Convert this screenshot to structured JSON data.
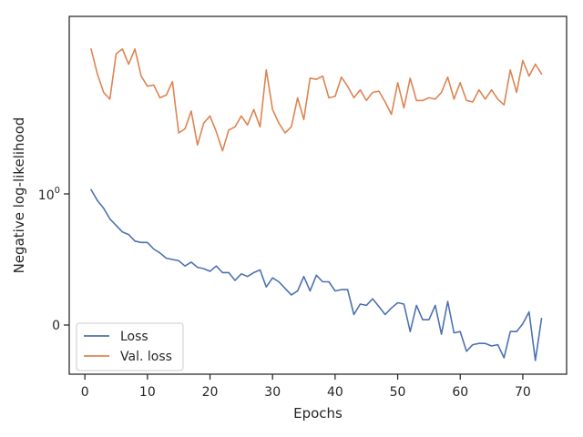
{
  "chart_data": {
    "type": "line",
    "title": "",
    "xlabel": "Epochs",
    "ylabel": "Negative log-likelihood",
    "xlim": [
      -2.5,
      77
    ],
    "x_ticks": [
      0,
      10,
      20,
      30,
      40,
      50,
      60,
      70
    ],
    "x_tick_labels": [
      "0",
      "10",
      "20",
      "30",
      "40",
      "50",
      "60",
      "70"
    ],
    "y_scale": "symlog",
    "y_tick_labels": {
      "zero": "0",
      "one_base": "10",
      "one_exp": "0"
    },
    "grid": false,
    "legend_position": "lower-left",
    "x": [
      1,
      2,
      3,
      4,
      5,
      6,
      7,
      8,
      9,
      10,
      11,
      12,
      13,
      14,
      15,
      16,
      17,
      18,
      19,
      20,
      21,
      22,
      23,
      24,
      25,
      26,
      27,
      28,
      29,
      30,
      31,
      32,
      33,
      34,
      35,
      36,
      37,
      38,
      39,
      40,
      41,
      42,
      43,
      44,
      45,
      46,
      47,
      48,
      49,
      50,
      51,
      52,
      53,
      54,
      55,
      56,
      57,
      58,
      59,
      60,
      61,
      62,
      63,
      64,
      65,
      66,
      67,
      68,
      69,
      70,
      71,
      72,
      73
    ],
    "series": [
      {
        "name": "Loss",
        "color": "#4c72b0",
        "values": [
          1.05,
          0.95,
          0.89,
          0.81,
          0.76,
          0.71,
          0.69,
          0.64,
          0.63,
          0.63,
          0.58,
          0.55,
          0.51,
          0.5,
          0.49,
          0.45,
          0.48,
          0.44,
          0.43,
          0.41,
          0.45,
          0.4,
          0.4,
          0.34,
          0.39,
          0.37,
          0.4,
          0.42,
          0.29,
          0.36,
          0.33,
          0.28,
          0.23,
          0.26,
          0.37,
          0.26,
          0.38,
          0.33,
          0.33,
          0.26,
          0.27,
          0.27,
          0.08,
          0.16,
          0.15,
          0.2,
          0.14,
          0.08,
          0.13,
          0.17,
          0.16,
          -0.05,
          0.15,
          0.04,
          0.04,
          0.15,
          -0.07,
          0.18,
          -0.06,
          -0.05,
          -0.2,
          -0.15,
          -0.14,
          -0.14,
          -0.16,
          -0.15,
          -0.25,
          -0.05,
          -0.05,
          0.01,
          0.1,
          -0.27,
          0.05
        ]
      },
      {
        "name": "Val. loss",
        "color": "#dd8452",
        "values": [
          5.5,
          4.1,
          3.3,
          3.05,
          5.2,
          5.5,
          4.6,
          5.5,
          4.0,
          3.55,
          3.6,
          3.1,
          3.2,
          3.75,
          2.05,
          2.15,
          2.65,
          1.78,
          2.3,
          2.5,
          2.08,
          1.66,
          2.12,
          2.2,
          2.5,
          2.25,
          2.7,
          2.2,
          4.3,
          2.7,
          2.3,
          2.05,
          2.2,
          3.1,
          2.4,
          3.9,
          3.85,
          4.0,
          3.1,
          3.15,
          3.95,
          3.55,
          3.1,
          3.4,
          3.0,
          3.3,
          3.35,
          2.95,
          2.55,
          3.7,
          2.75,
          3.9,
          3.0,
          3.0,
          3.1,
          3.05,
          3.3,
          3.95,
          3.05,
          3.7,
          3.0,
          2.95,
          3.4,
          3.05,
          3.4,
          3.05,
          2.85,
          4.3,
          3.3,
          4.8,
          4.0,
          4.6,
          4.1
        ]
      }
    ]
  }
}
